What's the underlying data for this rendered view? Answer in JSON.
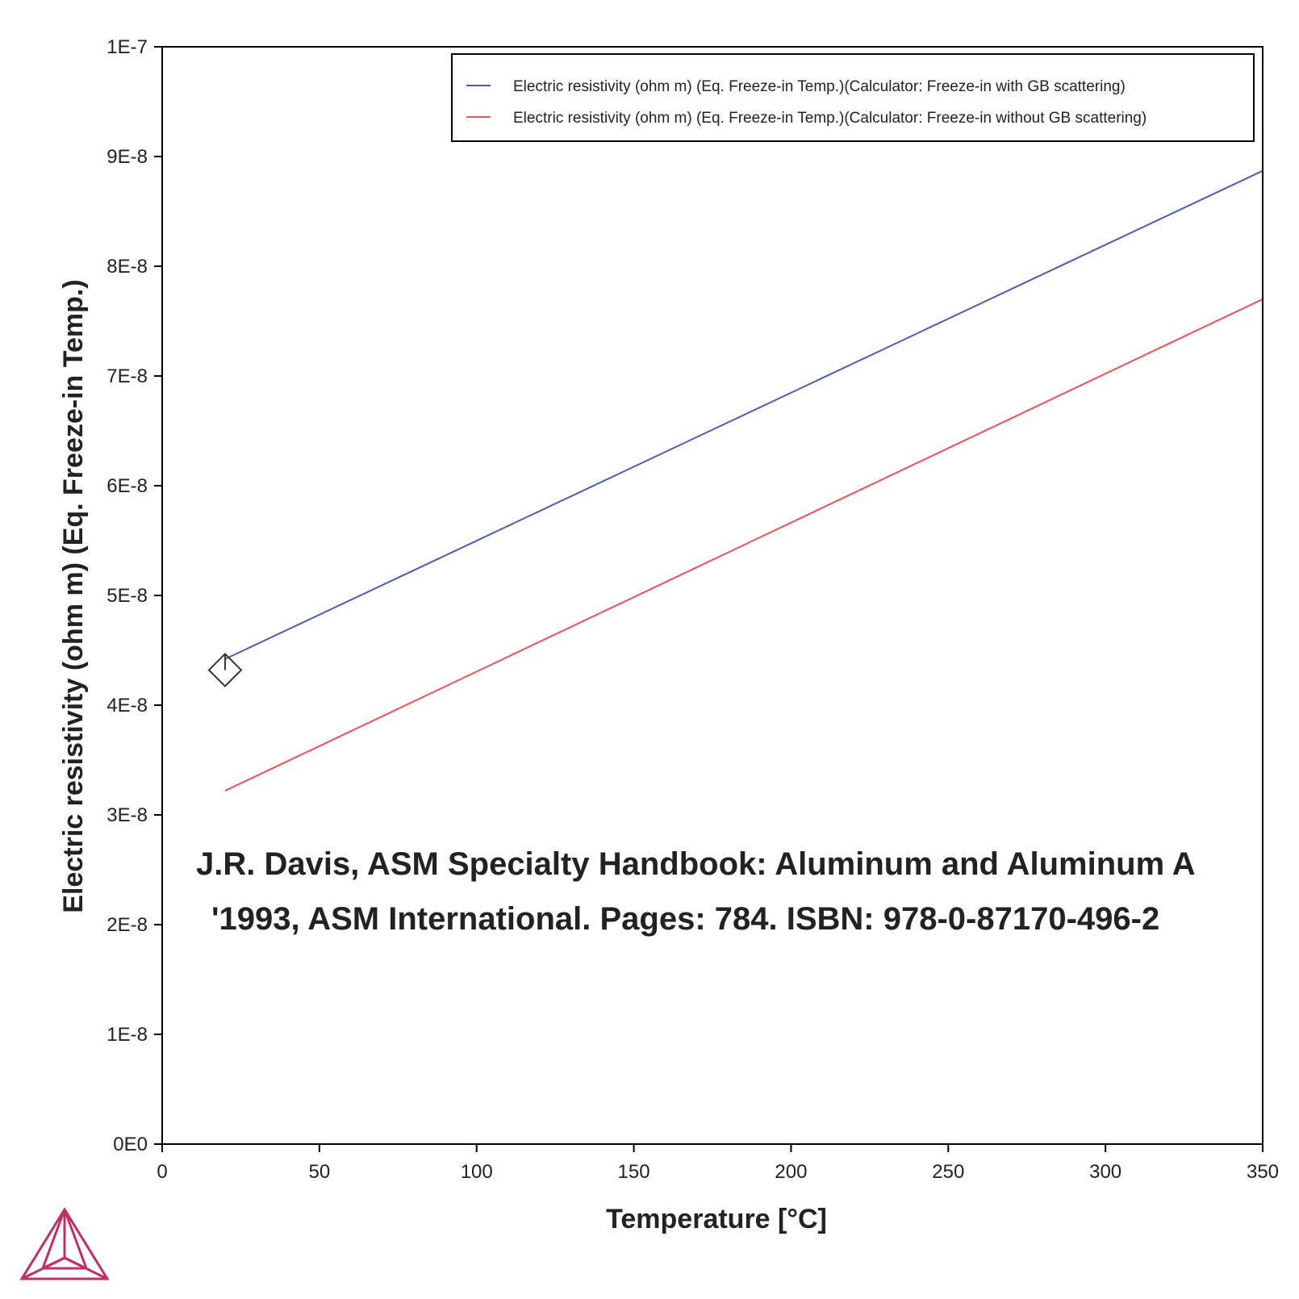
{
  "chart_data": {
    "type": "line",
    "xlabel": "Temperature [°C]",
    "ylabel": "Electric resistivity (ohm m) (Eq. Freeze-in Temp.)",
    "xlim": [
      0,
      350
    ],
    "ylim": [
      0,
      1e-07
    ],
    "x_ticks": [
      0,
      50,
      100,
      150,
      200,
      250,
      300,
      350
    ],
    "x_tick_labels": [
      "0",
      "50",
      "100",
      "150",
      "200",
      "250",
      "300",
      "350"
    ],
    "y_ticks": [
      0,
      1e-08,
      2e-08,
      3e-08,
      4e-08,
      5e-08,
      6e-08,
      7e-08,
      8e-08,
      9e-08,
      1e-07
    ],
    "y_tick_labels": [
      "0E0",
      "1E-8",
      "2E-8",
      "3E-8",
      "4E-8",
      "5E-8",
      "6E-8",
      "7E-8",
      "8E-8",
      "9E-8",
      "1E-7"
    ],
    "grid": false,
    "legend_position": "top-right",
    "series": [
      {
        "name": "Electric resistivity (ohm m) (Eq. Freeze-in Temp.)(Calculator: Freeze-in with GB scattering)",
        "color": "#4a5fb0",
        "x": [
          20,
          350
        ],
        "y": [
          4.42e-08,
          8.87e-08
        ]
      },
      {
        "name": "Electric resistivity (ohm m) (Eq. Freeze-in Temp.)(Calculator: Freeze-in without GB scattering)",
        "color": "#f0505a",
        "x": [
          20,
          350
        ],
        "y": [
          3.22e-08,
          7.7e-08
        ]
      }
    ],
    "markers": [
      {
        "shape": "diamond",
        "x": 20,
        "y": 4.32e-08
      }
    ],
    "annotations": [
      "J.R. Davis, ASM Specialty Handbook: Aluminum and Aluminum A",
      "'1993, ASM International. Pages: 784. ISBN: 978-0-87170-496-2"
    ]
  },
  "logo": {
    "name": "thermo-calc-logo-icon",
    "color": "#c03060"
  }
}
